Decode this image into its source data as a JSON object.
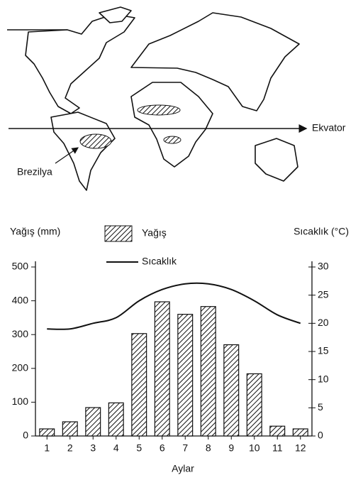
{
  "map": {
    "equator_label": "Ekvator",
    "region_label": "Brezilya"
  },
  "chart_data": {
    "type": "bar",
    "categories": [
      "1",
      "2",
      "3",
      "4",
      "5",
      "6",
      "7",
      "8",
      "9",
      "10",
      "11",
      "12"
    ],
    "x_label": "Aylar",
    "y_label": "Yağış (mm)",
    "y2_label": "Sıcaklık (°C)",
    "series": [
      {
        "name": "Yağış",
        "type": "bar",
        "color": "#111111",
        "values": [
          21,
          42,
          84,
          98,
          303,
          397,
          360,
          383,
          270,
          184,
          29,
          21
        ]
      },
      {
        "name": "Sıcaklık",
        "type": "line",
        "axis": "y2",
        "color": "#111111",
        "values": [
          19,
          19,
          20,
          21,
          24,
          26,
          27,
          27,
          26,
          24,
          21.5,
          20
        ]
      }
    ],
    "ylim": [
      0,
      500
    ],
    "yticks": [
      0,
      100,
      200,
      300,
      400,
      500
    ],
    "y2lim": [
      0,
      30
    ],
    "y2ticks": [
      0,
      5,
      10,
      15,
      20,
      25,
      30
    ],
    "grid": false
  }
}
